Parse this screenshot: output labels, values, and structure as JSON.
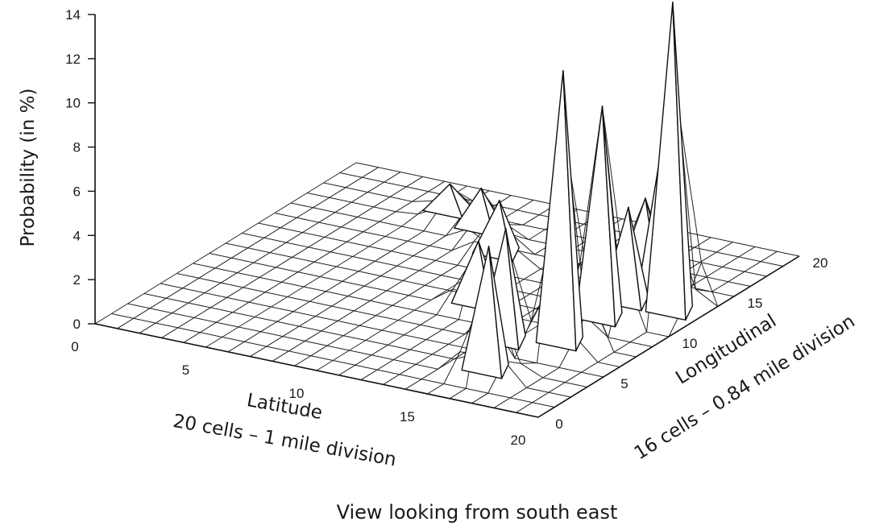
{
  "chart_data": {
    "type": "surface",
    "zlabel": "Probability (in %)",
    "xlabel": "Latitude",
    "xlabel_sub": "20 cells – 1 mile division",
    "ylabel": "Longitudinal",
    "ylabel_sub": "16 cells – 0.84 mile division",
    "caption": "View looking from south east",
    "x_ticks": [
      "0",
      "5",
      "10",
      "15",
      "20"
    ],
    "y_ticks": [
      "0",
      "5",
      "10",
      "15",
      "20"
    ],
    "z_ticks": [
      "0",
      "2",
      "4",
      "6",
      "8",
      "10",
      "12",
      "14"
    ],
    "xlim": [
      0,
      20
    ],
    "ylim": [
      0,
      20
    ],
    "zlim": [
      0,
      14
    ],
    "grid_x_cells": 20,
    "grid_y_cells": 16,
    "peaks": [
      {
        "x": 16,
        "y": 3,
        "z": 5.8
      },
      {
        "x": 15,
        "y": 6,
        "z": 5.3
      },
      {
        "x": 17,
        "y": 7,
        "z": 12.5
      },
      {
        "x": 17,
        "y": 10,
        "z": 9.8
      },
      {
        "x": 19,
        "y": 12,
        "z": 14.2
      },
      {
        "x": 18,
        "y": 13,
        "z": 7.6
      },
      {
        "x": 17,
        "y": 12,
        "z": 4.5
      },
      {
        "x": 16,
        "y": 15,
        "z": 3.6
      },
      {
        "x": 12,
        "y": 9,
        "z": 3.0
      },
      {
        "x": 10,
        "y": 14,
        "z": 2.6
      },
      {
        "x": 8,
        "y": 16,
        "z": 2.0
      },
      {
        "x": 6,
        "y": 17,
        "z": 1.4
      }
    ]
  }
}
